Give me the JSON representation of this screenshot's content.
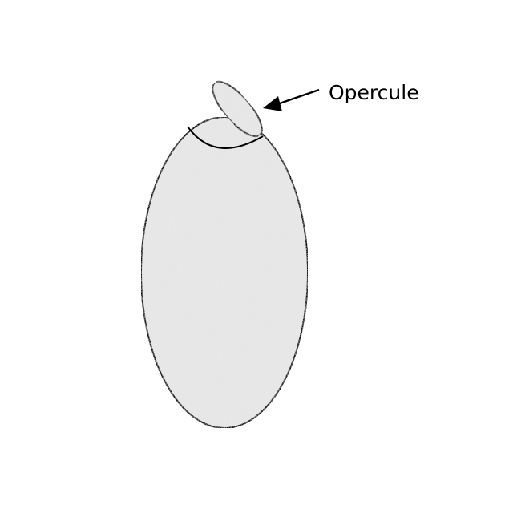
{
  "diagram": {
    "labels": [
      {
        "id": "opercule",
        "text": "Opercule"
      }
    ],
    "colors": {
      "fill": "#e6e6e6",
      "outline": "#000000",
      "background": "#ffffff"
    },
    "parts": [
      "egg-body",
      "operculum-cap"
    ]
  }
}
